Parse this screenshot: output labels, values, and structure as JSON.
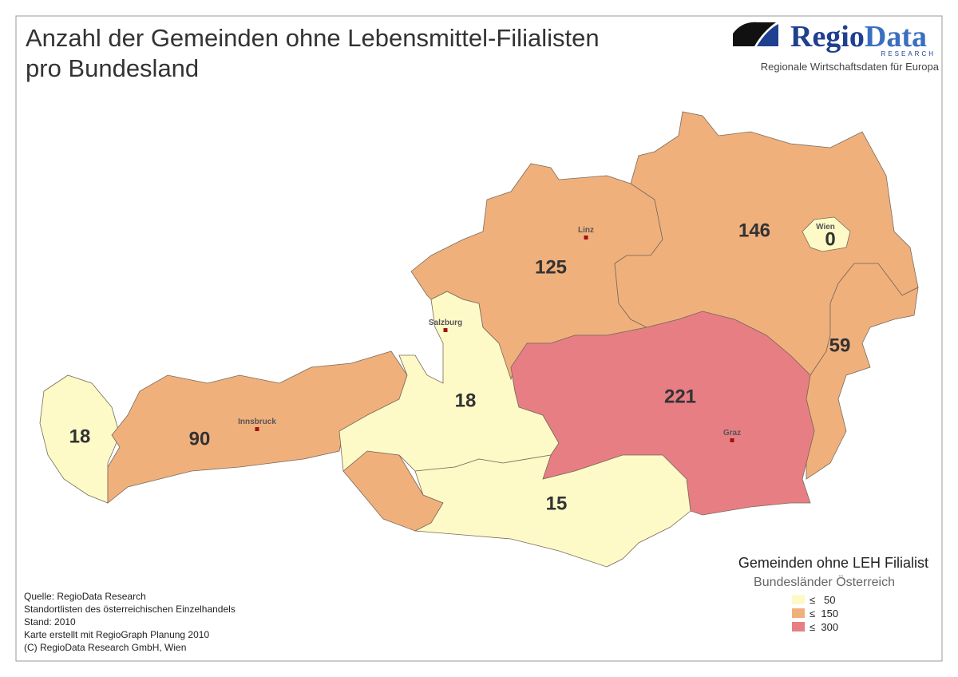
{
  "title": {
    "line1": "Anzahl der Gemeinden ohne Lebensmittel-Filialisten",
    "line2": "pro Bundesland"
  },
  "logo": {
    "name1": "Regio",
    "name2": "Data",
    "tag": "RESEARCH",
    "slogan": "Regionale Wirtschaftsdaten für Europa"
  },
  "regions": [
    {
      "value": 18
    },
    {
      "value": 90
    },
    {
      "value": 18
    },
    {
      "value": 125
    },
    {
      "value": 146
    },
    {
      "value": 0
    },
    {
      "value": 59
    },
    {
      "value": 221
    },
    {
      "value": 15
    }
  ],
  "cities": [
    {
      "label": "Linz"
    },
    {
      "label": "Salzburg"
    },
    {
      "label": "Innsbruck"
    },
    {
      "label": "Graz"
    },
    {
      "label": "Wien"
    }
  ],
  "legend": {
    "title": "Gemeinden ohne LEH Filialist",
    "subtitle": "Bundesländer Österreich",
    "items": [
      {
        "label": "≤   50",
        "max": 50,
        "color": "#fdfac8"
      },
      {
        "label": "≤  150",
        "max": 150,
        "color": "#f0b07c"
      },
      {
        "label": "≤  300",
        "max": 300,
        "color": "#e77e84"
      }
    ]
  },
  "source": [
    "Quelle: RegioData Research",
    "Standortlisten des österreichischen Einzelhandels",
    "Stand: 2010",
    "Karte erstellt mit RegioGraph Planung 2010",
    "(C) RegioData Research GmbH, Wien"
  ]
}
